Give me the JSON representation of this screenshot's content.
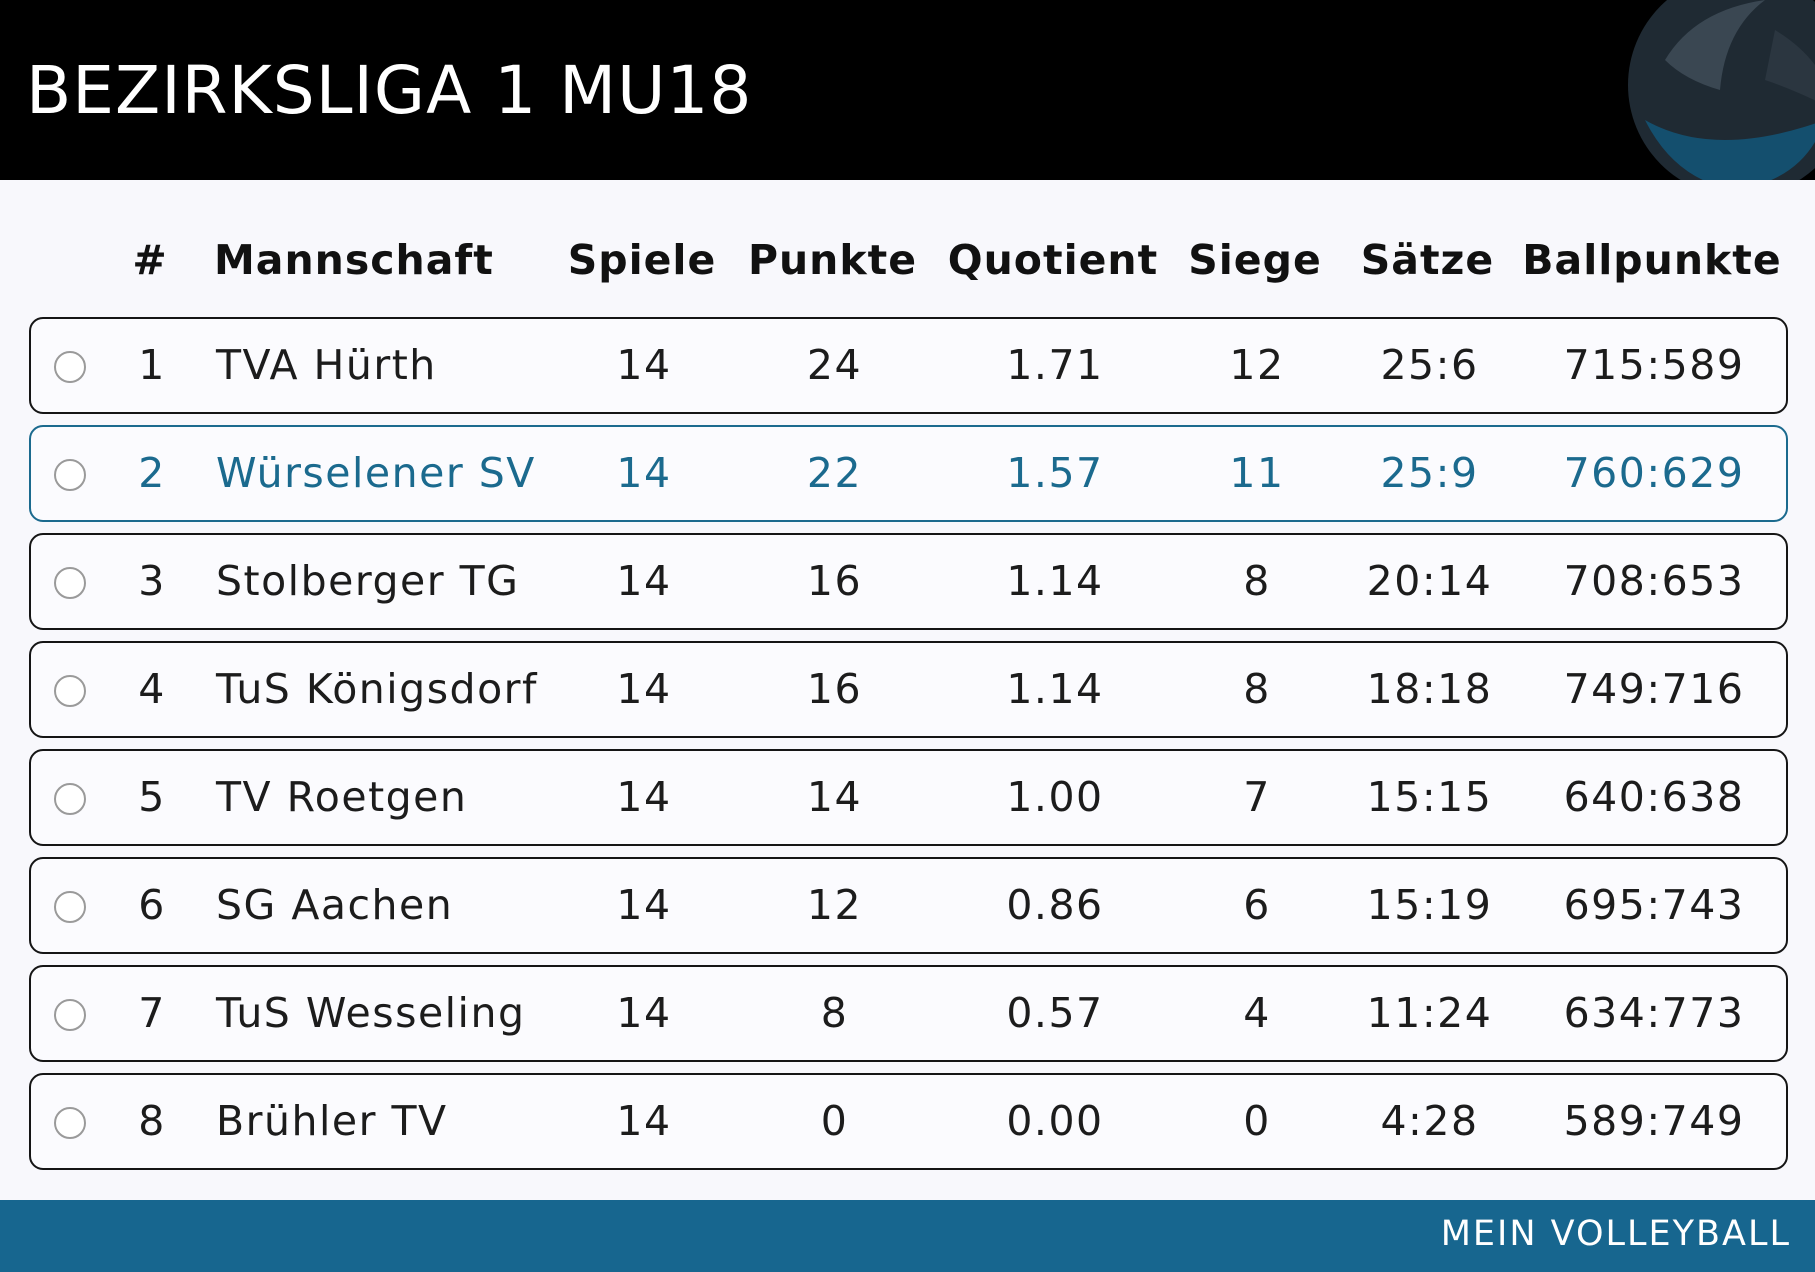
{
  "header": {
    "title": "BEZIRKSLIGA 1 MU18",
    "logo_icon": "volleyball-icon"
  },
  "table": {
    "columns": [
      "#",
      "Mannschaft",
      "Spiele",
      "Punkte",
      "Quotient",
      "Siege",
      "Sätze",
      "Ballpunkte"
    ],
    "rows": [
      {
        "rank": "1",
        "team": "TVA Hürth",
        "games": "14",
        "points": "24",
        "quotient": "1.71",
        "wins": "12",
        "sets": "25:6",
        "balls": "715:589",
        "highlight": false
      },
      {
        "rank": "2",
        "team": "Würselener SV",
        "games": "14",
        "points": "22",
        "quotient": "1.57",
        "wins": "11",
        "sets": "25:9",
        "balls": "760:629",
        "highlight": true
      },
      {
        "rank": "3",
        "team": "Stolberger TG",
        "games": "14",
        "points": "16",
        "quotient": "1.14",
        "wins": "8",
        "sets": "20:14",
        "balls": "708:653",
        "highlight": false
      },
      {
        "rank": "4",
        "team": "TuS Königsdorf",
        "games": "14",
        "points": "16",
        "quotient": "1.14",
        "wins": "8",
        "sets": "18:18",
        "balls": "749:716",
        "highlight": false
      },
      {
        "rank": "5",
        "team": "TV Roetgen",
        "games": "14",
        "points": "14",
        "quotient": "1.00",
        "wins": "7",
        "sets": "15:15",
        "balls": "640:638",
        "highlight": false
      },
      {
        "rank": "6",
        "team": "SG Aachen",
        "games": "14",
        "points": "12",
        "quotient": "0.86",
        "wins": "6",
        "sets": "15:19",
        "balls": "695:743",
        "highlight": false
      },
      {
        "rank": "7",
        "team": "TuS Wesseling",
        "games": "14",
        "points": "8",
        "quotient": "0.57",
        "wins": "4",
        "sets": "11:24",
        "balls": "634:773",
        "highlight": false
      },
      {
        "rank": "8",
        "team": "Brühler TV",
        "games": "14",
        "points": "0",
        "quotient": "0.00",
        "wins": "0",
        "sets": "4:28",
        "balls": "589:749",
        "highlight": false
      }
    ]
  },
  "footer": {
    "label": "MEIN VOLLEYBALL"
  },
  "colors": {
    "accent": "#17668f",
    "highlight_text": "#1b6a8e",
    "header_bg": "#000000"
  }
}
